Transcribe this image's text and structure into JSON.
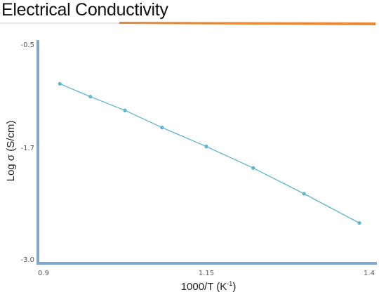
{
  "title": "Electrical Conductivity",
  "colors": {
    "line": "#5bb4d0",
    "axis": "#7fa7cf",
    "title_bar": "#e88a35"
  },
  "chart_data": {
    "type": "line",
    "title": "Electrical Conductivity",
    "xlabel_base": "1000/T (K",
    "xlabel_sup": "-1",
    "xlabel_tail": ")",
    "ylabel": "Log σ (S/cm)",
    "xlim": [
      0.9,
      1.4
    ],
    "ylim": [
      -3.0,
      -0.5
    ],
    "x_ticks": [
      "0.9",
      "1.15",
      "1.4"
    ],
    "y_ticks": [
      "-0.5",
      "-1.7",
      "-3.0"
    ],
    "grid": false,
    "series": [
      {
        "x": [
          0.925,
          0.972,
          1.025,
          1.082,
          1.15,
          1.222,
          1.3,
          1.385
        ],
        "y": [
          -0.96,
          -1.11,
          -1.27,
          -1.47,
          -1.69,
          -1.94,
          -2.24,
          -2.58
        ]
      }
    ]
  }
}
